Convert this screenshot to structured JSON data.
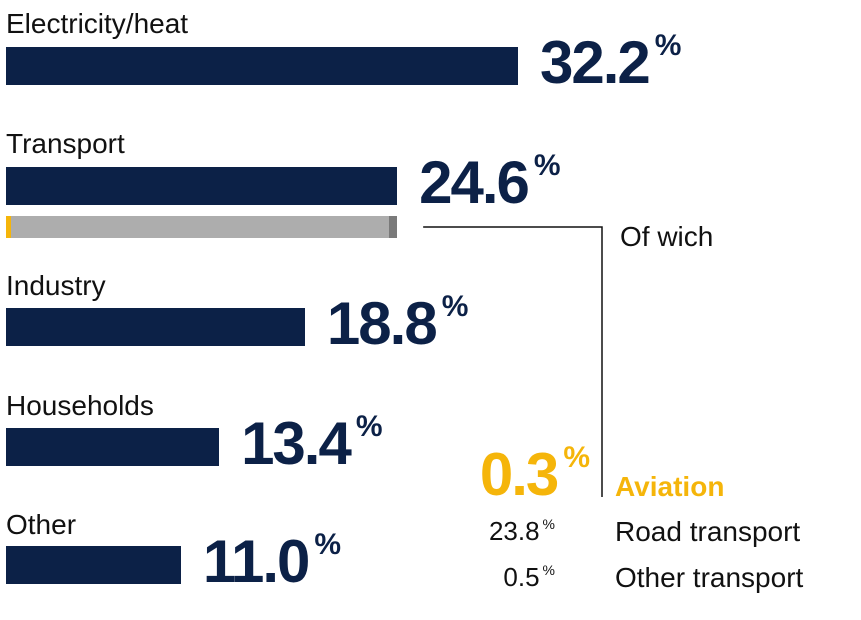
{
  "chart_data": {
    "type": "bar",
    "categories": [
      "Electricity/heat",
      "Transport",
      "Industry",
      "Households",
      "Other"
    ],
    "values": [
      32.2,
      24.6,
      18.8,
      13.4,
      11.0
    ],
    "value_labels": [
      "32.2",
      "24.6",
      "18.8",
      "13.4",
      "11.0"
    ],
    "unit": "%",
    "breakdown": {
      "of_category": "Transport",
      "heading": "Of wich",
      "items": [
        {
          "name": "Aviation",
          "value": 0.3,
          "label": "0.3",
          "highlight": true
        },
        {
          "name": "Road transport",
          "value": 23.8,
          "label": "23.8",
          "highlight": false
        },
        {
          "name": "Other transport",
          "value": 0.5,
          "label": "0.5",
          "highlight": false
        }
      ]
    },
    "xlim": [
      0,
      32.2
    ],
    "grid": false,
    "legend": "none"
  },
  "colors": {
    "bar": "#0c2147",
    "aviation": "#f5b50a",
    "road_transport": "#adadad",
    "other_transport": "#7a7a7a",
    "connector": "#111111",
    "text": "#111111"
  }
}
